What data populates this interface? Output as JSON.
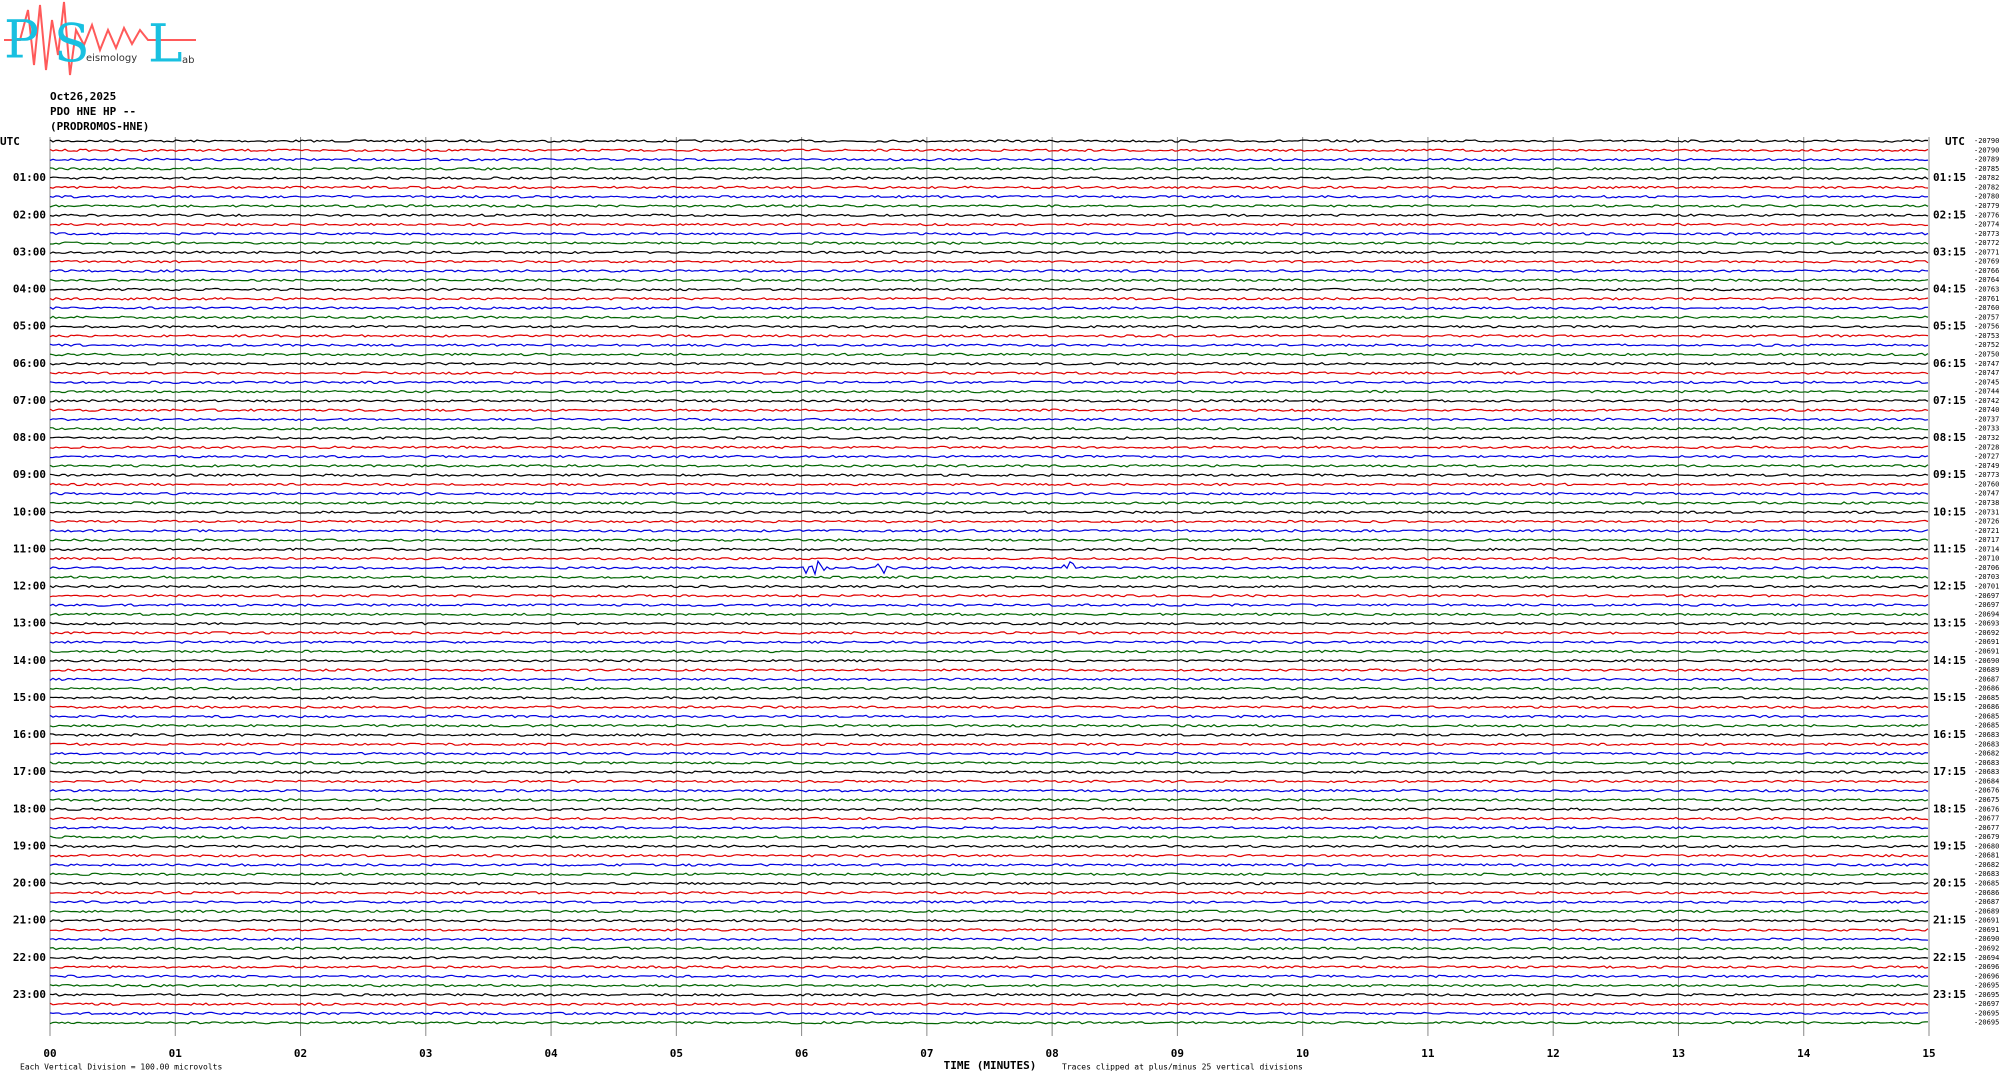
{
  "logo": {
    "letters": [
      "P",
      "S",
      "L"
    ],
    "words": [
      "eismology",
      "ab"
    ]
  },
  "header": {
    "date": "Oct26,2025",
    "station": "PDO HNE HP --",
    "site": "(PRODROMOS-HNE)"
  },
  "plot": {
    "left_header": "UTC",
    "right_header": "UTC",
    "hour_labels": [
      "01:00",
      "02:00",
      "03:00",
      "04:00",
      "05:00",
      "06:00",
      "07:00",
      "08:00",
      "09:00",
      "10:00",
      "11:00",
      "12:00",
      "13:00",
      "14:00",
      "15:00",
      "16:00",
      "17:00",
      "18:00",
      "19:00",
      "20:00",
      "21:00",
      "22:00",
      "23:00"
    ],
    "right_hour_labels": [
      "01:15",
      "02:15",
      "03:15",
      "04:15",
      "05:15",
      "06:15",
      "07:15",
      "08:15",
      "09:15",
      "10:15",
      "11:15",
      "12:15",
      "13:15",
      "14:15",
      "15:15",
      "16:15",
      "17:15",
      "18:15",
      "19:15",
      "20:15",
      "21:15",
      "22:15",
      "23:15"
    ],
    "trace_values": [
      -20790,
      -20790,
      -20789,
      -20785,
      -20782,
      -20782,
      -20780,
      -20779,
      -20776,
      -20774,
      -20773,
      -20772,
      -20771,
      -20769,
      -20766,
      -20764,
      -20763,
      -20761,
      -20760,
      -20757,
      -20756,
      -20753,
      -20752,
      -20750,
      -20747,
      -20747,
      -20745,
      -20744,
      -20742,
      -20740,
      -20737,
      -20733,
      -20732,
      -20728,
      -20727,
      -20749,
      -20773,
      -20760,
      -20747,
      -20738,
      -20731,
      -20726,
      -20721,
      -20717,
      -20714,
      -20710,
      -20706,
      -20703,
      -20701,
      -20697,
      -20697,
      -20694,
      -20693,
      -20692,
      -20691,
      -20691,
      -20690,
      -20689,
      -20687,
      -20686,
      -20685,
      -20686,
      -20685,
      -20685,
      -20683,
      -20683,
      -20682,
      -20683,
      -20683,
      -20684,
      -20676,
      -20675,
      -20676,
      -20677,
      -20677,
      -20679,
      -20680,
      -20681,
      -20682,
      -20683,
      -20685,
      -20686,
      -20687,
      -20689,
      -20691,
      -20691,
      -20690,
      -20692,
      -20694,
      -20696,
      -20696,
      -20695,
      -20695,
      -20697,
      -20695,
      -20695
    ],
    "trace_colors": [
      "#000000",
      "#e00000",
      "#0000e0",
      "#006400"
    ],
    "xlim": [
      0,
      15
    ],
    "xticks": [
      {
        "value": 0,
        "label": "00"
      },
      {
        "value": 1,
        "label": "01"
      },
      {
        "value": 2,
        "label": "02"
      },
      {
        "value": 3,
        "label": "03"
      },
      {
        "value": 4,
        "label": "04"
      },
      {
        "value": 5,
        "label": "05"
      },
      {
        "value": 6,
        "label": "06"
      },
      {
        "value": 7,
        "label": "07"
      },
      {
        "value": 8,
        "label": "08"
      },
      {
        "value": 9,
        "label": "09"
      },
      {
        "value": 10,
        "label": "10"
      },
      {
        "value": 11,
        "label": "11"
      },
      {
        "value": 12,
        "label": "12"
      },
      {
        "value": 13,
        "label": "13"
      },
      {
        "value": 14,
        "label": "14"
      },
      {
        "value": 15,
        "label": "15"
      }
    ],
    "x_label": "TIME (MINUTES)"
  },
  "footer": {
    "division_note": "Each Vertical Division =  100.00 microvolts",
    "clip_note": "Traces clipped at plus/minus 25 vertical divisions"
  }
}
